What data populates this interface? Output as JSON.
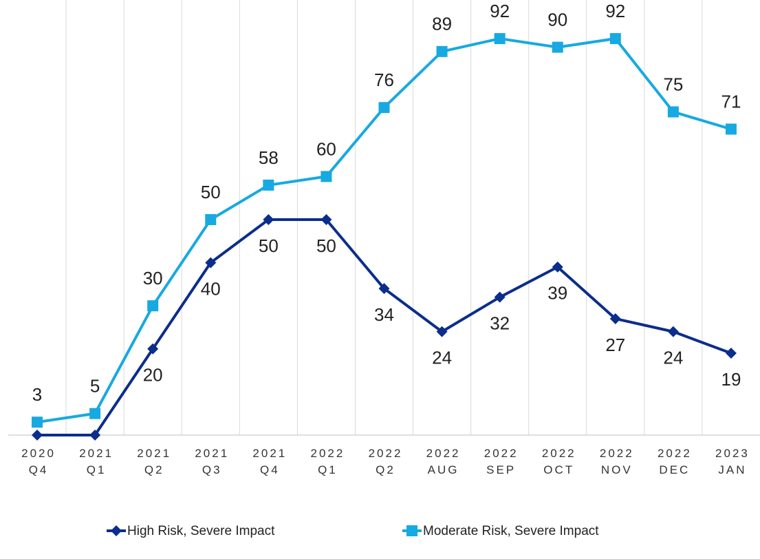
{
  "chart_data": {
    "type": "line",
    "categories": [
      "2020 Q4",
      "2021 Q1",
      "2021 Q2",
      "2021 Q3",
      "2021 Q4",
      "2022 Q1",
      "2022 Q2",
      "2022 AUG",
      "2022 SEP",
      "2022 OCT",
      "2022 NOV",
      "2022 DEC",
      "2023 JAN"
    ],
    "series": [
      {
        "name": "High Risk, Severe Impact",
        "color": "#0b2d8c",
        "marker": "diamond",
        "label_position": "below",
        "values": [
          0,
          0,
          20,
          40,
          50,
          50,
          34,
          24,
          32,
          39,
          27,
          24,
          19
        ],
        "value_labels": [
          null,
          null,
          "20",
          "40",
          "50",
          "50",
          "34",
          "24",
          "32",
          "39",
          "27",
          "24",
          "19"
        ]
      },
      {
        "name": "Moderate Risk, Severe Impact",
        "color": "#17a9e1",
        "marker": "square",
        "label_position": "above",
        "values": [
          3,
          5,
          30,
          50,
          58,
          60,
          76,
          89,
          92,
          90,
          92,
          75,
          71
        ],
        "value_labels": [
          "3",
          "5",
          "30",
          "50",
          "58",
          "60",
          "76",
          "89",
          "92",
          "90",
          "92",
          "75",
          "71"
        ]
      }
    ],
    "ylim": [
      0,
      100
    ],
    "grid": "vertical",
    "legend": "bottom"
  }
}
